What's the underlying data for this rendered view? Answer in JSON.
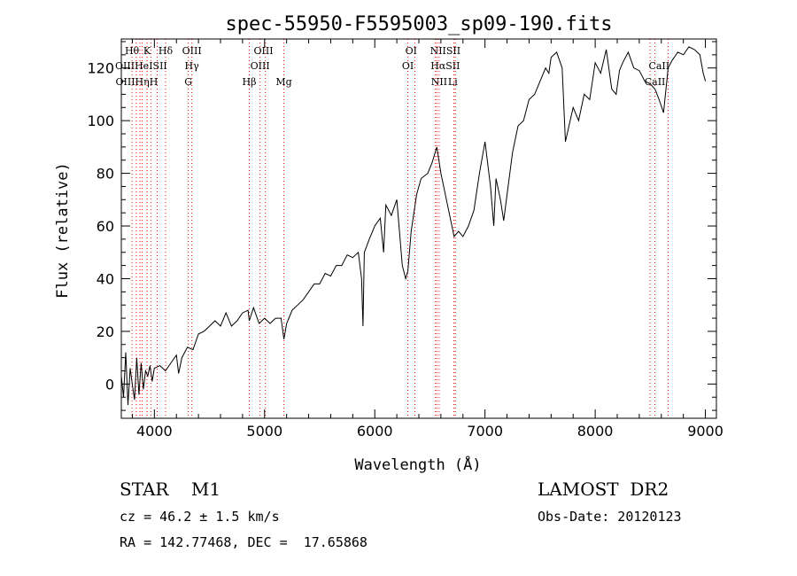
{
  "chart_data": {
    "type": "line",
    "title": "spec-55950-F5595003_sp09-190.fits",
    "xlabel": "Wavelength (Å)",
    "ylabel": "Flux (relative)",
    "xlim": [
      3700,
      9100
    ],
    "ylim": [
      -13,
      131
    ],
    "x_ticks": [
      "4000",
      "5000",
      "6000",
      "7000",
      "8000",
      "9000"
    ],
    "y_ticks": [
      "0",
      "20",
      "40",
      "60",
      "80",
      "100",
      "120"
    ],
    "line_color": "#000000",
    "marker_color": "#ff0000",
    "series": [
      {
        "x": [
          3700,
          3720,
          3740,
          3760,
          3780,
          3800,
          3820,
          3840,
          3860,
          3880,
          3900,
          3920,
          3940,
          3960,
          3980,
          4000,
          4050,
          4100,
          4150,
          4200,
          4220,
          4250,
          4300,
          4350,
          4400,
          4450,
          4500,
          4550,
          4600,
          4650,
          4700,
          4750,
          4800,
          4850,
          4861,
          4900,
          4950,
          5000,
          5050,
          5100,
          5150,
          5175,
          5200,
          5250,
          5300,
          5350,
          5400,
          5450,
          5500,
          5550,
          5600,
          5650,
          5700,
          5750,
          5800,
          5850,
          5880,
          5893,
          5905,
          5950,
          6000,
          6050,
          6080,
          6100,
          6150,
          6200,
          6250,
          6280,
          6300,
          6330,
          6380,
          6420,
          6480,
          6520,
          6563,
          6600,
          6650,
          6700,
          6720,
          6760,
          6800,
          6850,
          6900,
          6950,
          7000,
          7050,
          7080,
          7100,
          7140,
          7170,
          7200,
          7250,
          7300,
          7350,
          7400,
          7450,
          7500,
          7550,
          7580,
          7600,
          7650,
          7700,
          7730,
          7800,
          7850,
          7900,
          7950,
          8000,
          8050,
          8100,
          8150,
          8190,
          8220,
          8250,
          8300,
          8350,
          8400,
          8450,
          8498,
          8542,
          8580,
          8620,
          8662,
          8700,
          8750,
          8800,
          8850,
          8900,
          8950,
          8980,
          9000
        ],
        "y": [
          3,
          -5,
          12,
          -8,
          6,
          0,
          -6,
          10,
          -4,
          8,
          -2,
          5,
          3,
          7,
          1,
          6,
          7,
          5,
          8,
          11,
          4,
          10,
          14,
          13,
          19,
          20,
          22,
          24,
          22,
          27,
          22,
          24,
          27,
          28,
          24,
          29,
          23,
          25,
          23,
          25,
          25,
          17,
          23,
          28,
          30,
          32,
          35,
          38,
          38,
          42,
          41,
          45,
          45,
          49,
          48,
          50,
          40,
          22,
          50,
          55,
          60,
          63,
          50,
          68,
          64,
          70,
          45,
          40,
          43,
          58,
          72,
          78,
          80,
          84,
          90,
          80,
          70,
          60,
          56,
          58,
          56,
          60,
          66,
          80,
          92,
          75,
          60,
          78,
          70,
          62,
          72,
          88,
          98,
          100,
          108,
          110,
          115,
          120,
          118,
          124,
          126,
          120,
          92,
          105,
          100,
          110,
          108,
          122,
          118,
          127,
          112,
          110,
          119,
          122,
          126,
          120,
          119,
          115,
          114,
          112,
          108,
          103,
          120,
          123,
          126,
          125,
          128,
          127,
          125,
          118,
          115
        ]
      }
    ],
    "line_markers": [
      {
        "wl": 3797,
        "label": "Hθ",
        "row": 0
      },
      {
        "wl": 3835,
        "label": "",
        "row": 0
      },
      {
        "wl": 3869,
        "label": "",
        "row": 0
      },
      {
        "wl": 3889,
        "label": "",
        "row": 0
      },
      {
        "wl": 3933,
        "label": "K",
        "row": 0
      },
      {
        "wl": 3968,
        "label": "",
        "row": 0
      },
      {
        "wl": 4026,
        "label": "",
        "row": 0
      },
      {
        "wl": 4102,
        "label": "Hδ",
        "row": 0
      },
      {
        "wl": 4308,
        "label": "",
        "row": 0
      },
      {
        "wl": 4340,
        "label": "OIII",
        "row": 0
      },
      {
        "wl": 4861,
        "label": "",
        "row": 0
      },
      {
        "wl": 4959,
        "label": "OIII",
        "row": 0
      },
      {
        "wl": 5007,
        "label": "",
        "row": 0
      },
      {
        "wl": 5175,
        "label": "",
        "row": 0
      },
      {
        "wl": 6300,
        "label": "OI",
        "row": 0
      },
      {
        "wl": 6364,
        "label": "",
        "row": 0
      },
      {
        "wl": 6548,
        "label": "NIISII",
        "row": 0
      },
      {
        "wl": 6563,
        "label": "",
        "row": 0
      },
      {
        "wl": 6584,
        "label": "",
        "row": 0
      },
      {
        "wl": 6717,
        "label": "",
        "row": 0
      },
      {
        "wl": 6731,
        "label": "",
        "row": 0
      },
      {
        "wl": 8498,
        "label": "",
        "row": 0
      },
      {
        "wl": 8542,
        "label": "",
        "row": 0
      },
      {
        "wl": 8662,
        "label": "",
        "row": 0
      }
    ],
    "line_labels": [
      {
        "text": "Hθ",
        "wl": 3797,
        "row": 0
      },
      {
        "text": "K",
        "wl": 3933,
        "row": 0
      },
      {
        "text": "Hδ",
        "wl": 4102,
        "row": 0
      },
      {
        "text": "OIII",
        "wl": 4340,
        "row": 0
      },
      {
        "text": "OIII",
        "wl": 4990,
        "row": 0
      },
      {
        "text": "OI",
        "wl": 6330,
        "row": 0
      },
      {
        "text": "NIISII",
        "wl": 6640,
        "row": 0
      },
      {
        "text": "OIIIHeISII",
        "wl": 3880,
        "row": 1
      },
      {
        "text": "Hγ",
        "wl": 4340,
        "row": 1
      },
      {
        "text": "OIII",
        "wl": 4959,
        "row": 1
      },
      {
        "text": "OI",
        "wl": 6300,
        "row": 1
      },
      {
        "text": "HαSII",
        "wl": 6640,
        "row": 1
      },
      {
        "text": "CaII",
        "wl": 8580,
        "row": 1
      },
      {
        "text": "OIIIHηH",
        "wl": 3840,
        "row": 2
      },
      {
        "text": "G",
        "wl": 4308,
        "row": 2
      },
      {
        "text": "Hβ",
        "wl": 4861,
        "row": 2
      },
      {
        "text": "Mg",
        "wl": 5175,
        "row": 2
      },
      {
        "text": "NII",
        "wl": 6584,
        "row": 2
      },
      {
        "text": "Li",
        "wl": 6708,
        "row": 2
      },
      {
        "text": "CaII",
        "wl": 8542,
        "row": 2
      }
    ]
  },
  "info": {
    "object_type": "STAR    M1",
    "survey": "LAMOST  DR2",
    "cz": "cz = 46.2 ± 1.5 km/s",
    "obs_date": "Obs-Date: 20120123",
    "radec": "RA = 142.77468, DEC =  17.65868"
  }
}
